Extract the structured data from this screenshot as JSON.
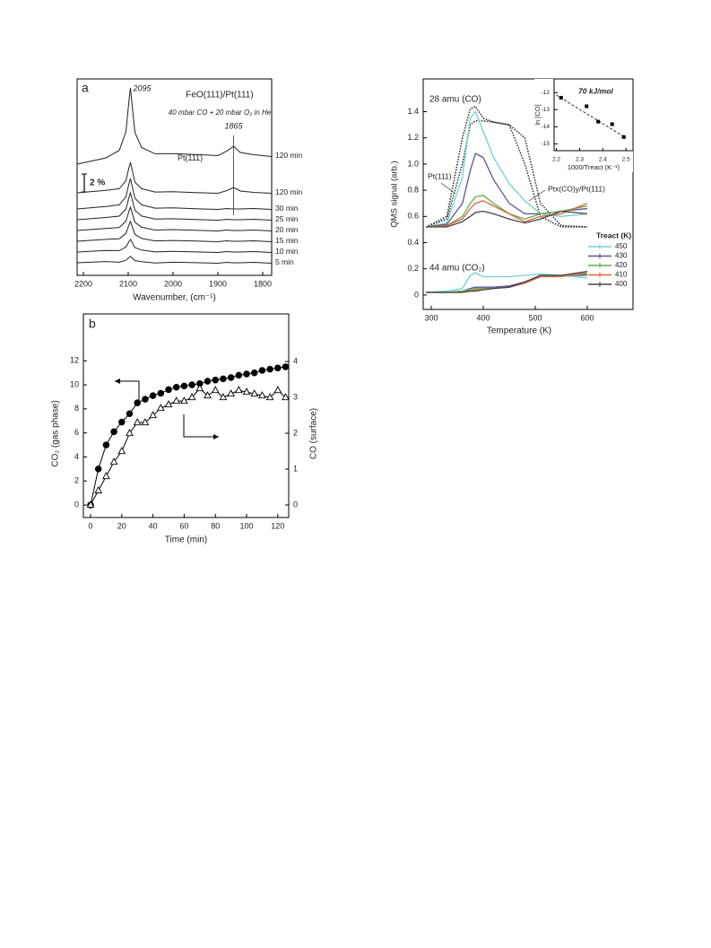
{
  "chart_data": [
    {
      "type": "spectra",
      "panel_label": "a",
      "title": "FeO(111)/Pt(111)",
      "subtitle": "40 mbar CO + 20 mbar O₂ in He",
      "xlabel": "Wavenumber, (cm⁻¹)",
      "xlim": [
        2214,
        1780
      ],
      "ylim": [
        -1.4,
        20.5
      ],
      "xticks": [
        2200,
        2100,
        2000,
        1900,
        1800
      ],
      "x": [
        2214,
        2150,
        2120,
        2105,
        2098,
        2095,
        2092,
        2085,
        2070,
        2040,
        2000,
        1950,
        1900,
        1880,
        1865,
        1850,
        1820,
        1780
      ],
      "scale_bar": {
        "value": 2,
        "label": "2 %"
      },
      "peak_labels": [
        2095,
        1865
      ],
      "series": [
        {
          "name": "5 min",
          "color": "#222",
          "values": [
            0,
            0.14,
            0.06,
            0.28,
            0.6,
            0.7,
            0.56,
            0.25,
            0.13,
            -0.02,
            0.06,
            0.01,
            -0.05,
            0.05,
            0,
            0,
            0.05,
            -0.05
          ]
        },
        {
          "name": "10 min",
          "color": "#222",
          "values": [
            1.2,
            1.37,
            1.36,
            1.76,
            2.39,
            2.6,
            2.32,
            1.69,
            1.42,
            1.21,
            1.28,
            1.21,
            1.15,
            1.25,
            1.2,
            1.2,
            1.25,
            1.15
          ]
        },
        {
          "name": "15 min",
          "color": "#222",
          "values": [
            2.4,
            2.61,
            2.68,
            3.28,
            4.27,
            4.6,
            4.16,
            3.17,
            2.71,
            2.44,
            2.49,
            2.42,
            2.35,
            2.45,
            2.4,
            2.4,
            2.45,
            2.35
          ]
        },
        {
          "name": "20 min",
          "color": "#222",
          "values": [
            3.6,
            3.83,
            3.94,
            4.64,
            5.81,
            6.2,
            5.68,
            4.51,
            3.96,
            3.65,
            3.7,
            3.63,
            3.55,
            3.65,
            3.6,
            3.6,
            3.65,
            3.55
          ]
        },
        {
          "name": "25 min",
          "color": "#222",
          "values": [
            4.8,
            5.05,
            5.2,
            6.0,
            7.35,
            7.8,
            7.2,
            5.85,
            5.21,
            4.87,
            4.91,
            4.83,
            4.75,
            4.85,
            4.8,
            4.8,
            4.85,
            4.75
          ]
        },
        {
          "name": "30 min",
          "color": "#222",
          "values": [
            6.0,
            6.27,
            6.46,
            7.36,
            8.89,
            9.4,
            8.72,
            7.19,
            6.46,
            6.09,
            6.12,
            6.03,
            5.95,
            6.05,
            6.0,
            6.0,
            6.05,
            5.95
          ]
        },
        {
          "name": "120 min",
          "color": "#222",
          "values": [
            7.8,
            8.07,
            8.26,
            9.16,
            10.69,
            11.2,
            10.52,
            8.99,
            8.26,
            7.89,
            7.92,
            7.83,
            7.75,
            8.05,
            8.4,
            8.0,
            7.85,
            7.75
          ]
        },
        {
          "name": "120 min",
          "sample": "Pt(111)",
          "color": "#222",
          "values": [
            11.0,
            11.69,
            12.52,
            14.62,
            18.23,
            19.5,
            17.94,
            14.53,
            12.84,
            12.16,
            12.16,
            12.08,
            11.95,
            12.45,
            13.0,
            12.3,
            12.05,
            11.85
          ]
        }
      ]
    },
    {
      "type": "line",
      "panel_label": "b",
      "xlabel": "Time (min)",
      "ylabel": "CO₂ (gas phase)",
      "y2label": "CO (surface)",
      "xlim": [
        -4.6,
        127
      ],
      "ylim": [
        -1.04,
        15.9
      ],
      "y2lim": [
        -0.35,
        5.33
      ],
      "xticks": [
        0,
        20,
        40,
        60,
        80,
        100,
        120
      ],
      "yticks": [
        0,
        2,
        4,
        6,
        8,
        10,
        12
      ],
      "y2ticks": [
        0,
        1,
        2,
        3,
        4
      ],
      "x": [
        0,
        5,
        10,
        15,
        20,
        25,
        30,
        35,
        40,
        45,
        50,
        55,
        60,
        65,
        70,
        75,
        80,
        85,
        90,
        95,
        100,
        105,
        110,
        115,
        120,
        125
      ],
      "series": [
        {
          "color": "#000000",
          "marker": "circle",
          "filled": true,
          "values": [
            0,
            3.0,
            5.0,
            6.1,
            6.9,
            7.6,
            8.5,
            8.8,
            9.1,
            9.3,
            9.6,
            9.8,
            9.9,
            10.0,
            10.1,
            10.3,
            10.4,
            10.5,
            10.6,
            10.8,
            10.9,
            11.0,
            11.2,
            11.3,
            11.4,
            11.5
          ]
        },
        {
          "color": "#000000",
          "marker": "triangle",
          "filled": false,
          "axis": "y2",
          "values": [
            0,
            0.4,
            0.8,
            1.2,
            1.5,
            2.0,
            2.3,
            2.3,
            2.5,
            2.7,
            2.8,
            2.9,
            2.9,
            3.0,
            3.25,
            3.05,
            3.2,
            3.0,
            3.1,
            3.2,
            3.15,
            3.1,
            3.05,
            3.0,
            3.2,
            3.0
          ]
        }
      ]
    },
    {
      "type": "line",
      "xlabel": "Temperature (K)",
      "ylabel": "QMS signal (arb.)",
      "annotations": [
        "28 amu (CO)",
        "44 amu (CO₂)"
      ],
      "legend_title": "Treact (K)",
      "xlim": [
        284.5,
        688
      ],
      "ylim": [
        -0.11,
        1.65
      ],
      "xticks": [
        300,
        400,
        500,
        600
      ],
      "yticks": [
        0,
        0.2,
        0.4,
        0.6,
        0.8,
        {
          "value": 1,
          "label": "1.0"
        },
        1.2,
        1.4
      ],
      "x": [
        290,
        330,
        360,
        375,
        385,
        400,
        420,
        450,
        480,
        510,
        550,
        600
      ],
      "series": [
        {
          "name": "450",
          "color": "#6fd0d6",
          "values": [
            0.52,
            0.55,
            0.9,
            1.35,
            1.4,
            1.25,
            1.05,
            0.85,
            0.72,
            0.62,
            0.6,
            0.62
          ],
          "co2_values": [
            0.02,
            0.03,
            0.05,
            0.15,
            0.17,
            0.14,
            0.14,
            0.14,
            0.15,
            0.16,
            0.15,
            0.13
          ]
        },
        {
          "name": "430",
          "color": "#55559e",
          "values": [
            0.52,
            0.54,
            0.7,
            0.95,
            1.08,
            1.05,
            0.88,
            0.7,
            0.62,
            0.62,
            0.64,
            0.66
          ],
          "co2_values": [
            0.02,
            0.02,
            0.03,
            0.05,
            0.06,
            0.06,
            0.06,
            0.07,
            0.1,
            0.15,
            0.15,
            0.15
          ]
        },
        {
          "name": "420",
          "color": "#5fae4a",
          "values": [
            0.52,
            0.53,
            0.6,
            0.7,
            0.75,
            0.76,
            0.7,
            0.62,
            0.58,
            0.62,
            0.64,
            0.68
          ],
          "co2_values": [
            0.02,
            0.02,
            0.03,
            0.04,
            0.05,
            0.05,
            0.05,
            0.06,
            0.09,
            0.14,
            0.15,
            0.16
          ]
        },
        {
          "name": "410",
          "color": "#e0603a",
          "values": [
            0.52,
            0.53,
            0.58,
            0.66,
            0.7,
            0.72,
            0.68,
            0.62,
            0.56,
            0.6,
            0.62,
            0.7
          ],
          "co2_values": [
            0.02,
            0.02,
            0.02,
            0.03,
            0.04,
            0.04,
            0.05,
            0.06,
            0.09,
            0.14,
            0.14,
            0.17
          ]
        },
        {
          "name": "400",
          "color": "#444444",
          "values": [
            0.52,
            0.52,
            0.56,
            0.6,
            0.63,
            0.64,
            0.62,
            0.58,
            0.55,
            0.58,
            0.64,
            0.62
          ],
          "co2_values": [
            0.02,
            0.02,
            0.02,
            0.03,
            0.03,
            0.04,
            0.05,
            0.06,
            0.1,
            0.15,
            0.15,
            0.18
          ]
        }
      ],
      "reference_series": [
        {
          "name": "Pt(111)",
          "color": "#333333",
          "values": [
            0.52,
            0.6,
            1.2,
            1.42,
            1.44,
            1.35,
            1.32,
            1.3,
            1.0,
            0.6,
            0.52,
            0.52
          ]
        },
        {
          "name": "Ptx(CO)y/Pt(111)",
          "color": "#333333",
          "values": [
            0.52,
            0.58,
            1.0,
            1.3,
            1.33,
            1.33,
            1.32,
            1.3,
            1.2,
            0.7,
            0.53,
            0.52
          ]
        }
      ],
      "inset": {
        "annotation": "70 kJ/mol",
        "xlabel": "1000/Treact (K⁻¹)",
        "ylabel": "ln [CO]",
        "xlim": [
          2.19,
          2.53
        ],
        "ylim": [
          -15.4,
          -11.2
        ],
        "xticks": [
          2.2,
          2.3,
          2.4,
          2.5
        ],
        "yticks": [
          -12,
          -13,
          -14,
          -15
        ],
        "x": [
          2.22,
          2.33,
          2.38,
          2.44,
          2.49
        ],
        "values": [
          -12.3,
          -12.8,
          -13.7,
          -13.85,
          -14.6
        ],
        "fit": {
          "x": [
            2.2,
            2.5
          ],
          "values": [
            -12.15,
            -14.65
          ]
        }
      }
    }
  ]
}
